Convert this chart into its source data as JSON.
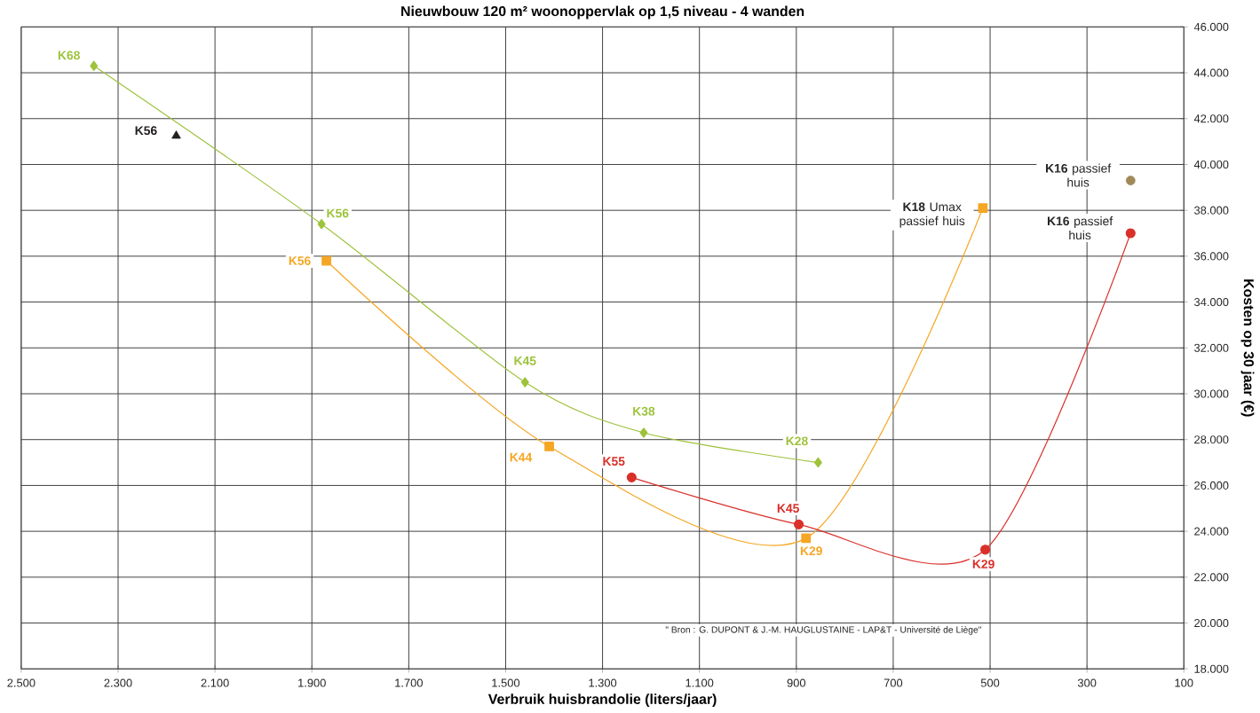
{
  "chart_data": {
    "type": "line",
    "title": "Nieuwbouw 120 m² woonoppervlak op 1,5 niveau - 4 wanden",
    "xlabel": "Verbruik huisbrandolie (liters/jaar)",
    "ylabel": "Kosten op 30 jaar (€)",
    "xlim": [
      2500,
      100
    ],
    "ylim": [
      18000,
      46000
    ],
    "xticks": [
      {
        "value": 2500,
        "label": "2.500"
      },
      {
        "value": 2300,
        "label": "2.300"
      },
      {
        "value": 2100,
        "label": "2.100"
      },
      {
        "value": 1900,
        "label": "1.900"
      },
      {
        "value": 1700,
        "label": "1.700"
      },
      {
        "value": 1500,
        "label": "1.500"
      },
      {
        "value": 1300,
        "label": "1.300"
      },
      {
        "value": 1100,
        "label": "1.100"
      },
      {
        "value": 900,
        "label": "900"
      },
      {
        "value": 700,
        "label": "700"
      },
      {
        "value": 500,
        "label": "500"
      },
      {
        "value": 300,
        "label": "300"
      },
      {
        "value": 100,
        "label": "100"
      }
    ],
    "yticks": [
      {
        "value": 18000,
        "label": "18.000"
      },
      {
        "value": 20000,
        "label": "20.000"
      },
      {
        "value": 22000,
        "label": "22.000"
      },
      {
        "value": 24000,
        "label": "24.000"
      },
      {
        "value": 26000,
        "label": "26.000"
      },
      {
        "value": 28000,
        "label": "28.000"
      },
      {
        "value": 30000,
        "label": "30.000"
      },
      {
        "value": 32000,
        "label": "32.000"
      },
      {
        "value": 34000,
        "label": "34.000"
      },
      {
        "value": 36000,
        "label": "36.000"
      },
      {
        "value": 38000,
        "label": "38.000"
      },
      {
        "value": 40000,
        "label": "40.000"
      },
      {
        "value": 42000,
        "label": "42.000"
      },
      {
        "value": 44000,
        "label": "44.000"
      },
      {
        "value": 46000,
        "label": "46.000"
      }
    ],
    "grid": true,
    "series": [
      {
        "color": "#9dc23b",
        "marker": "diamond",
        "x": [
          2350,
          1880,
          1460,
          1215,
          855
        ],
        "values": [
          44300,
          37400,
          30500,
          28300,
          27000
        ],
        "value_labels": [
          "K68",
          "K56",
          "K45",
          "K38",
          "K28"
        ]
      },
      {
        "color": "#f5a623",
        "marker": "square",
        "x": [
          1870,
          1410,
          880,
          515
        ],
        "values": [
          35800,
          27700,
          23700,
          38100
        ],
        "value_labels": [
          "K56",
          "K44",
          "K29",
          "**K18** Umax passief huis"
        ]
      },
      {
        "color": "#d9302a",
        "marker": "circle",
        "x": [
          1240,
          895,
          510,
          210
        ],
        "values": [
          26350,
          24300,
          23200,
          37000
        ],
        "value_labels": [
          "K55",
          "K45",
          "K29",
          "**K16** passief huis"
        ]
      },
      {
        "type": "scatter",
        "color": "#231f20",
        "marker": "triangle",
        "x": [
          2180
        ],
        "values": [
          41250
        ],
        "value_labels": [
          "K56"
        ]
      },
      {
        "type": "scatter",
        "color": "#a08a5a",
        "marker": "circle",
        "x": [
          210
        ],
        "values": [
          39300
        ],
        "value_labels": [
          "**K16** passief huis"
        ]
      }
    ],
    "annotations": [
      "\" Bron : G. DUPONT & J.-M. HAUGLUSTAINE - LAP&T - Université de Liège\""
    ]
  }
}
